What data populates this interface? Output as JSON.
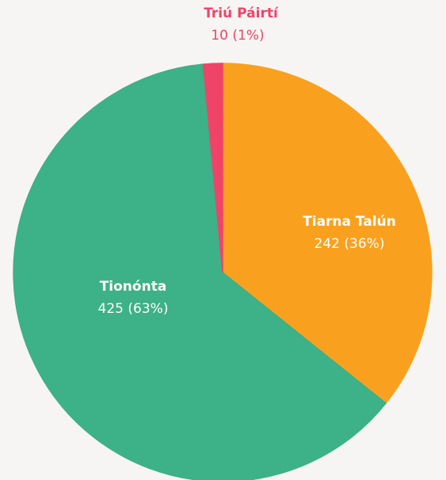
{
  "chart_data": {
    "type": "pie",
    "categories": [
      "Tiarna Talún",
      "Tionónta",
      "Triú Páirtí"
    ],
    "values": [
      242,
      425,
      10
    ],
    "value_labels": [
      "242 (36%)",
      "425 (63%)",
      "10 (1%)"
    ],
    "colors": [
      "#f9a11f",
      "#3db187",
      "#ef4468"
    ]
  }
}
